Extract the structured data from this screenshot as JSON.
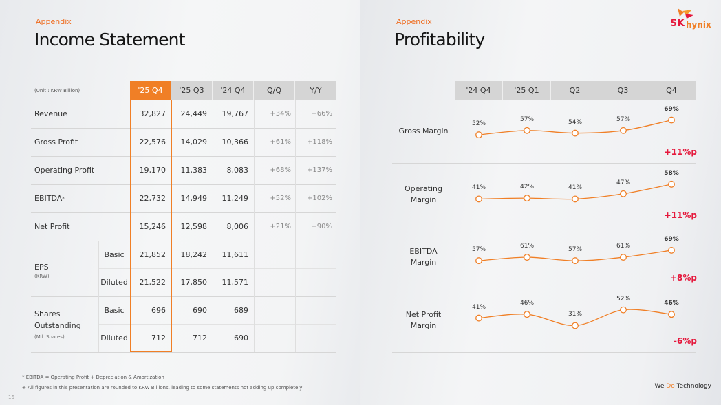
{
  "left": {
    "section": "Appendix",
    "title": "Income Statement",
    "unit": "(Unit : KRW Billion)",
    "headers": [
      "'25 Q4",
      "'25 Q3",
      "'24 Q4",
      "Q/Q",
      "Y/Y"
    ],
    "rows": [
      {
        "label": "Revenue",
        "values": [
          "32,827",
          "24,449",
          "19,767"
        ],
        "qq": "+34%",
        "yy": "+66%"
      },
      {
        "label": "Gross Profit",
        "values": [
          "22,576",
          "14,029",
          "10,366"
        ],
        "qq": "+61%",
        "yy": "+118%"
      },
      {
        "label": "Operating Profit",
        "values": [
          "19,170",
          "11,383",
          "8,083"
        ],
        "qq": "+68%",
        "yy": "+137%"
      },
      {
        "label": "EBITDA",
        "mark": "*",
        "values": [
          "22,732",
          "14,949",
          "11,249"
        ],
        "qq": "+52%",
        "yy": "+102%"
      },
      {
        "label": "Net Profit",
        "values": [
          "15,246",
          "12,598",
          "8,006"
        ],
        "qq": "+21%",
        "yy": "+90%"
      }
    ],
    "eps": {
      "label": "EPS",
      "sublabel": "(KRW)",
      "rows": [
        {
          "label": "Basic",
          "values": [
            "21,852",
            "18,242",
            "11,611"
          ]
        },
        {
          "label": "Diluted",
          "values": [
            "21,522",
            "17,850",
            "11,571"
          ]
        }
      ]
    },
    "shares": {
      "label1": "Shares",
      "label2": "Outstanding",
      "sublabel": "(Mil. Shares)",
      "rows": [
        {
          "label": "Basic",
          "values": [
            "696",
            "690",
            "689"
          ]
        },
        {
          "label": "Diluted",
          "values": [
            "712",
            "712",
            "690"
          ]
        }
      ]
    },
    "footnote1": "* EBITDA = Operating Profit + Depreciation & Amortization",
    "footnote2": "※ All figures in this presentation are rounded to KRW Billions, leading to some statements not adding up completely",
    "page_number": "16"
  },
  "right": {
    "section": "Appendix",
    "title": "Profitability",
    "logo": {
      "sk": "SK",
      "hynix": "hynix"
    },
    "tagline": {
      "we": "We ",
      "do": "Do",
      "tech": " Technology"
    },
    "accent": "#f07f26",
    "delta_color": "#e5183c"
  },
  "chart_data": {
    "type": "line",
    "categories": [
      "'24 Q4",
      "'25 Q1",
      "Q2",
      "Q3",
      "Q4"
    ],
    "series": [
      {
        "name": "Gross Margin",
        "label_lines": [
          "Gross Margin"
        ],
        "values": [
          52,
          57,
          54,
          57,
          69
        ],
        "labels": [
          "52%",
          "57%",
          "54%",
          "57%",
          "69%"
        ],
        "delta": "+11%p"
      },
      {
        "name": "Operating Margin",
        "label_lines": [
          "Operating",
          "Margin"
        ],
        "values": [
          41,
          42,
          41,
          47,
          58
        ],
        "labels": [
          "41%",
          "42%",
          "41%",
          "47%",
          "58%"
        ],
        "delta": "+11%p"
      },
      {
        "name": "EBITDA Margin",
        "label_lines": [
          "EBITDA",
          "Margin"
        ],
        "values": [
          57,
          61,
          57,
          61,
          69
        ],
        "labels": [
          "57%",
          "61%",
          "57%",
          "61%",
          "69%"
        ],
        "delta": "+8%p"
      },
      {
        "name": "Net Profit Margin",
        "label_lines": [
          "Net Profit",
          "Margin"
        ],
        "values": [
          41,
          46,
          31,
          52,
          46
        ],
        "labels": [
          "41%",
          "46%",
          "31%",
          "52%",
          "46%"
        ],
        "delta": "-6%p"
      }
    ],
    "unit": "%"
  }
}
